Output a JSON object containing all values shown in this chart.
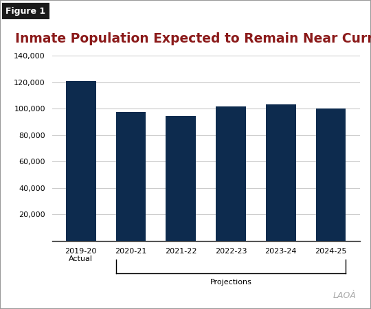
{
  "title": "Inmate Population Expected to Remain Near Current Low",
  "figure_label": "Figure 1",
  "categories": [
    "2019-20\nActual",
    "2020-21",
    "2021-22",
    "2022-23",
    "2023-24",
    "2024-25"
  ],
  "values": [
    121000,
    97500,
    94500,
    101500,
    103000,
    100000
  ],
  "bar_color": "#0d2b4e",
  "ylim": [
    0,
    140000
  ],
  "yticks": [
    0,
    20000,
    40000,
    60000,
    80000,
    100000,
    120000,
    140000
  ],
  "ytick_labels": [
    "",
    "20,000",
    "40,000",
    "60,000",
    "80,000",
    "100,000",
    "120,000",
    "140,000"
  ],
  "title_color": "#8b1a1a",
  "title_fontsize": 13.5,
  "figure_label_color": "#ffffff",
  "figure_label_bg": "#1a1a1a",
  "projections_label": "Projections",
  "lao_watermark": "LAOÀ",
  "background_color": "#ffffff",
  "grid_color": "#cccccc",
  "bar_width": 0.6,
  "outer_border_color": "#999999"
}
